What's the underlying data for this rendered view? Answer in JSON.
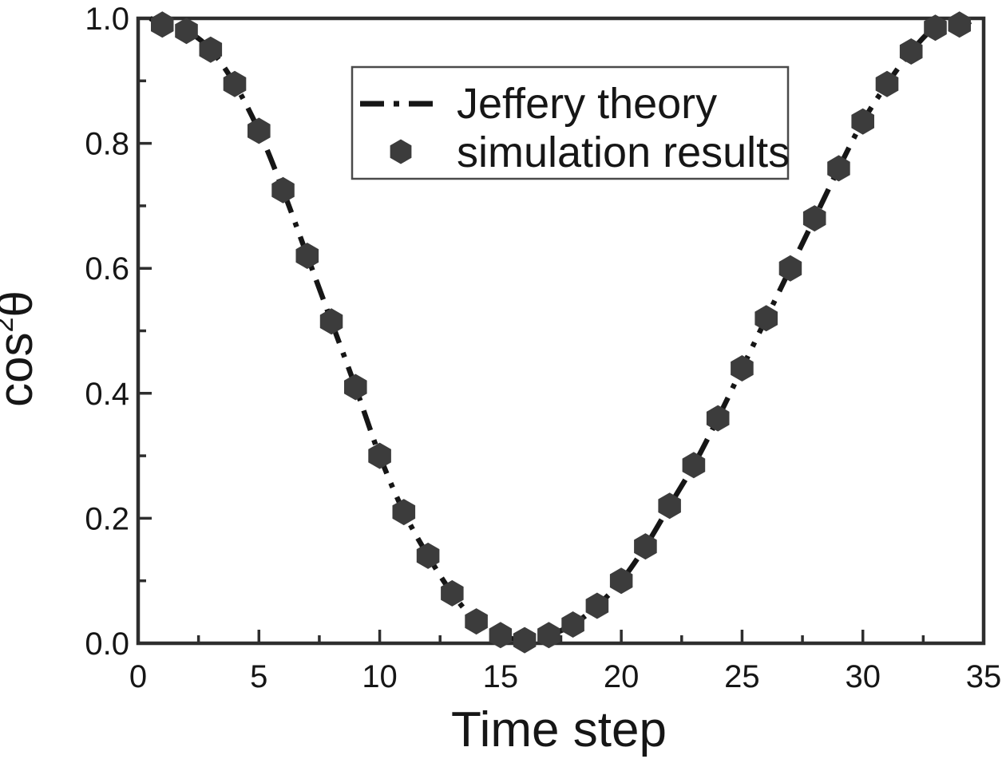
{
  "figure": {
    "background_color": "#ffffff",
    "frame_color": "#2e2e2e",
    "text_color": "#161616"
  },
  "chart_data": {
    "type": "line+scatter",
    "title": "",
    "xlabel": "Time step",
    "ylabel": "cos2θ",
    "ylabel_parts": {
      "base": "cos",
      "exponent": "2",
      "symbol": "θ"
    },
    "xlim": [
      0,
      35
    ],
    "ylim": [
      0.0,
      1.0
    ],
    "x_axis": {
      "major_ticks": [
        0,
        5,
        10,
        15,
        20,
        25,
        30,
        35
      ],
      "minor_ticks": [
        2.5,
        7.5,
        12.5,
        17.5,
        22.5,
        27.5,
        32.5
      ]
    },
    "y_axis": {
      "major_ticks": [
        0.0,
        0.2,
        0.4,
        0.6,
        0.8,
        1.0
      ],
      "minor_ticks": [
        0.1,
        0.3,
        0.5,
        0.7,
        0.9
      ],
      "tick_label_decimals": 1
    },
    "grid": false,
    "legend": {
      "position": "upper-center",
      "border": true
    },
    "series": [
      {
        "name": "Jeffery theory",
        "type": "line",
        "line_style": "dash-dot",
        "color": "#161616",
        "x": [
          0.5,
          1,
          2,
          3,
          4,
          5,
          6,
          7,
          8,
          9,
          10,
          11,
          12,
          13,
          14,
          15,
          16,
          17,
          18,
          19,
          20,
          21,
          22,
          23,
          24,
          25,
          26,
          27,
          28,
          29,
          30,
          31,
          32,
          33,
          34,
          34.85
        ],
        "y": [
          1.0,
          0.99,
          0.98,
          0.95,
          0.895,
          0.82,
          0.725,
          0.62,
          0.515,
          0.41,
          0.3,
          0.21,
          0.14,
          0.08,
          0.035,
          0.013,
          0.005,
          0.013,
          0.03,
          0.06,
          0.1,
          0.155,
          0.22,
          0.285,
          0.36,
          0.44,
          0.52,
          0.6,
          0.68,
          0.76,
          0.835,
          0.895,
          0.947,
          0.985,
          0.99,
          1.0
        ]
      },
      {
        "name": "simulation results",
        "type": "scatter",
        "marker": "hexagon",
        "color": "#3c3c3c",
        "x": [
          1,
          2,
          3,
          4,
          5,
          6,
          7,
          8,
          9,
          10,
          11,
          12,
          13,
          14,
          15,
          16,
          17,
          18,
          19,
          20,
          21,
          22,
          23,
          24,
          25,
          26,
          27,
          28,
          29,
          30,
          31,
          32,
          33,
          34
        ],
        "y": [
          0.99,
          0.98,
          0.95,
          0.895,
          0.82,
          0.725,
          0.62,
          0.515,
          0.41,
          0.3,
          0.21,
          0.14,
          0.08,
          0.035,
          0.013,
          0.005,
          0.013,
          0.03,
          0.06,
          0.1,
          0.155,
          0.22,
          0.285,
          0.36,
          0.44,
          0.52,
          0.6,
          0.68,
          0.76,
          0.835,
          0.895,
          0.947,
          0.985,
          0.99
        ]
      }
    ]
  }
}
